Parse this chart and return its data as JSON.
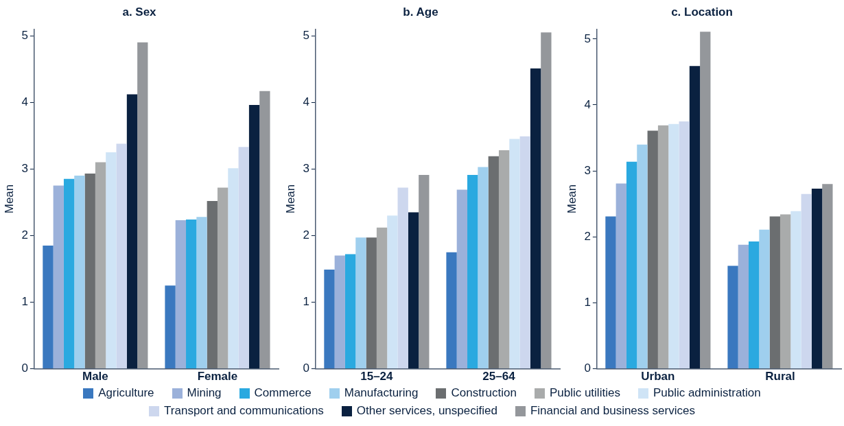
{
  "chart_data": [
    {
      "type": "bar",
      "title": "a. Sex",
      "ylabel": "Mean",
      "categories": [
        "Male",
        "Female"
      ],
      "ylim": [
        0,
        5.1
      ],
      "yticks": [
        0,
        1,
        2,
        3,
        4,
        5
      ],
      "grid": false,
      "legend": "bottom",
      "series": [
        {
          "name": "Agriculture",
          "color": "#3a78bf",
          "values": [
            1.85,
            1.25
          ]
        },
        {
          "name": "Mining",
          "color": "#9bb1da",
          "values": [
            2.75,
            2.23
          ]
        },
        {
          "name": "Commerce",
          "color": "#2aa9e0",
          "values": [
            2.85,
            2.24
          ]
        },
        {
          "name": "Manufacturing",
          "color": "#9fcfee",
          "values": [
            2.9,
            2.28
          ]
        },
        {
          "name": "Construction",
          "color": "#6b6e70",
          "values": [
            2.93,
            2.52
          ]
        },
        {
          "name": "Public utilities",
          "color": "#a9abab",
          "values": [
            3.1,
            2.72
          ]
        },
        {
          "name": "Public administration",
          "color": "#cfe4f6",
          "values": [
            3.25,
            3.01
          ]
        },
        {
          "name": "Transport and communications",
          "color": "#cdd7ee",
          "values": [
            3.38,
            3.33
          ]
        },
        {
          "name": "Other services, unspecified",
          "color": "#0a2140",
          "values": [
            4.12,
            3.96
          ]
        },
        {
          "name": "Financial and business services",
          "color": "#94979b",
          "values": [
            4.9,
            4.17
          ]
        }
      ]
    },
    {
      "type": "bar",
      "title": "b. Age",
      "ylabel": "Mean",
      "categories": [
        "15–24",
        "25–64"
      ],
      "ylim": [
        0,
        5.1
      ],
      "yticks": [
        0,
        1,
        2,
        3,
        4,
        5
      ],
      "grid": false,
      "series": [
        {
          "color": "#3a78bf",
          "values": [
            1.49,
            1.75
          ]
        },
        {
          "color": "#9bb1da",
          "values": [
            1.7,
            2.69
          ]
        },
        {
          "color": "#2aa9e0",
          "values": [
            1.72,
            2.91
          ]
        },
        {
          "color": "#9fcfee",
          "values": [
            1.97,
            3.03
          ]
        },
        {
          "color": "#6b6e70",
          "values": [
            1.97,
            3.19
          ]
        },
        {
          "color": "#a9abab",
          "values": [
            2.12,
            3.28
          ]
        },
        {
          "color": "#cfe4f6",
          "values": [
            2.3,
            3.45
          ]
        },
        {
          "color": "#cdd7ee",
          "values": [
            2.72,
            3.49
          ]
        },
        {
          "color": "#0a2140",
          "values": [
            2.35,
            4.51
          ]
        },
        {
          "color": "#94979b",
          "values": [
            2.91,
            5.05
          ]
        }
      ]
    },
    {
      "type": "bar",
      "title": "c. Location",
      "ylabel": "Mean",
      "categories": [
        "Urban",
        "Rural"
      ],
      "ylim": [
        0,
        5.15
      ],
      "yticks": [
        0,
        1,
        2,
        3,
        4,
        5
      ],
      "grid": false,
      "series": [
        {
          "color": "#3a78bf",
          "values": [
            2.31,
            1.56
          ]
        },
        {
          "color": "#9bb1da",
          "values": [
            2.81,
            1.88
          ]
        },
        {
          "color": "#2aa9e0",
          "values": [
            3.14,
            1.93
          ]
        },
        {
          "color": "#9fcfee",
          "values": [
            3.4,
            2.11
          ]
        },
        {
          "color": "#6b6e70",
          "values": [
            3.61,
            2.31
          ]
        },
        {
          "color": "#a9abab",
          "values": [
            3.69,
            2.34
          ]
        },
        {
          "color": "#cfe4f6",
          "values": [
            3.71,
            2.39
          ]
        },
        {
          "color": "#cdd7ee",
          "values": [
            3.75,
            2.65
          ]
        },
        {
          "color": "#0a2140",
          "values": [
            4.59,
            2.73
          ]
        },
        {
          "color": "#94979b",
          "values": [
            5.11,
            2.8
          ]
        }
      ]
    }
  ]
}
